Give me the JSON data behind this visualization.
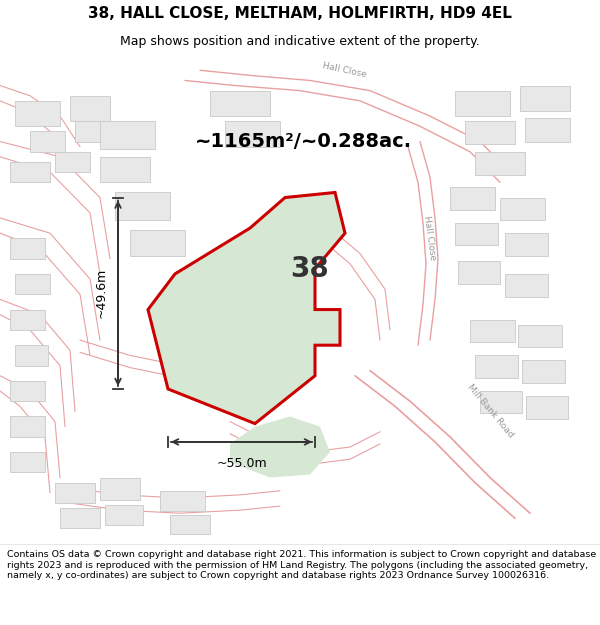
{
  "title": "38, HALL CLOSE, MELTHAM, HOLMFIRTH, HD9 4EL",
  "subtitle": "Map shows position and indicative extent of the property.",
  "footer": "Contains OS data © Crown copyright and database right 2021. This information is subject to Crown copyright and database rights 2023 and is reproduced with the permission of HM Land Registry. The polygons (including the associated geometry, namely x, y co-ordinates) are subject to Crown copyright and database rights 2023 Ordnance Survey 100026316.",
  "area_text": "~1165m²/~0.288ac.",
  "property_number": "38",
  "dim_width": "~55.0m",
  "dim_height": "~49.6m",
  "map_bg_color": "#f5f5f5",
  "plot_fill_color": "#d6e8d4",
  "plot_edge_color": "#cc0000",
  "road_line_color": "#e8a0a0",
  "road_fill_color": "#f0d0d0",
  "building_edge_color": "#c8c8c8",
  "building_fill_color": "#e8e8e8",
  "green_fill_color": "#d6e8d4",
  "title_fontsize": 11,
  "subtitle_fontsize": 9,
  "area_fontsize": 14,
  "number_fontsize": 20,
  "dim_fontsize": 9,
  "road_label_fontsize": 6.5
}
